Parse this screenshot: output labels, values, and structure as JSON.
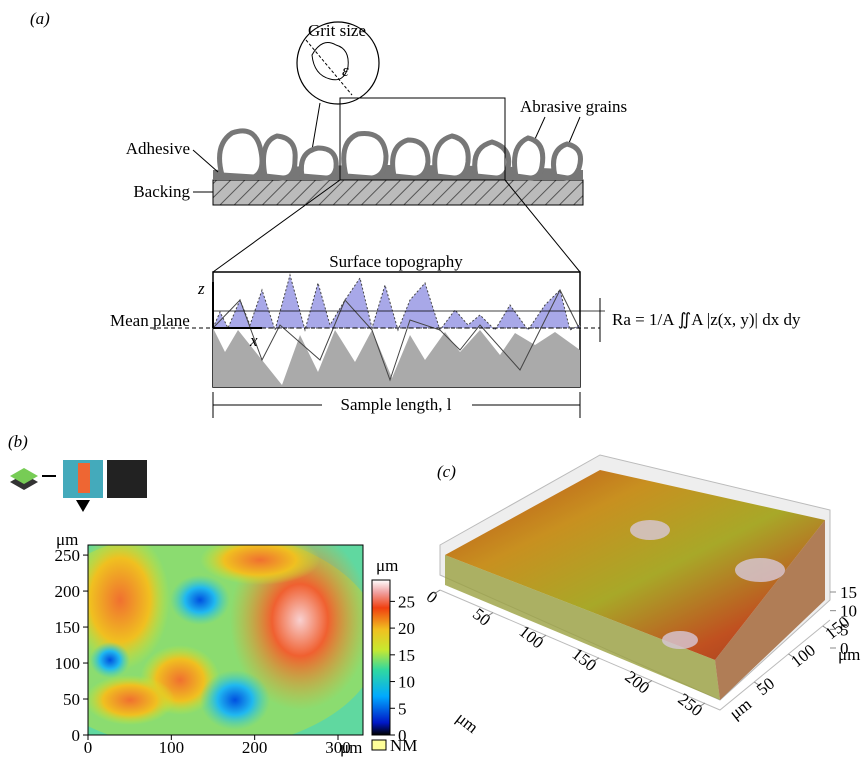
{
  "panel_a": {
    "label": "(a)",
    "grit_size": "Grit size",
    "epsilon": "ε",
    "abrasive_grains": "Abrasive grains",
    "adhesive": "Adhesive",
    "backing": "Backing",
    "surface_topography": "Surface topography",
    "z_axis": "z",
    "x_axis": "x",
    "mean_plane": "Mean plane",
    "formula": "Ra = 1/A ∬A |z(x, y)| dx dy",
    "sample_length": "Sample length, l"
  },
  "panel_b": {
    "label": "(b)",
    "x_unit": "μm",
    "y_unit": "μm",
    "xticks": [
      0,
      100,
      200,
      300
    ],
    "xlim": [
      0,
      330
    ],
    "yticks": [
      0,
      50,
      100,
      150,
      200,
      250
    ],
    "ylim": [
      0,
      264
    ],
    "colorbar_unit": "μm",
    "colorbar_ticks": [
      0,
      5,
      10,
      15,
      20,
      25
    ],
    "colorbar_lim": [
      0,
      29
    ],
    "nm_label": "NM"
  },
  "panel_c": {
    "label": "(c)",
    "x_unit": "μm",
    "y_unit": "μm",
    "z_unit": "μm",
    "xticks": [
      0,
      50,
      100,
      150,
      200,
      250
    ],
    "yticks": [
      50,
      100,
      150
    ],
    "zticks": [
      0,
      5,
      10,
      15
    ]
  }
}
